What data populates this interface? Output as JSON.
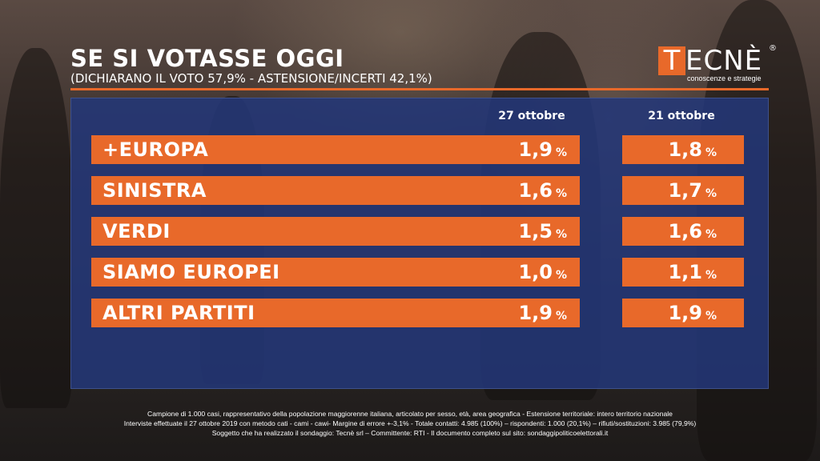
{
  "header": {
    "title": "SE SI VOTASSE OGGI",
    "subtitle": "(DICHIARANO IL VOTO 57,9% - ASTENSIONE/INCERTI 42,1%)"
  },
  "logo": {
    "initial": "T",
    "rest": "ECNÈ",
    "registered": "®",
    "tagline": "conoscenze e strategie"
  },
  "colors": {
    "accent": "#e8692a",
    "panel": "#233778"
  },
  "chart_data": {
    "type": "table",
    "columns": [
      "27 ottobre",
      "21 ottobre"
    ],
    "unit": "%",
    "rows": [
      {
        "party": "+EUROPA",
        "values": [
          "1,9",
          "1,8"
        ]
      },
      {
        "party": "SINISTRA",
        "values": [
          "1,6",
          "1,7"
        ]
      },
      {
        "party": "VERDI",
        "values": [
          "1,5",
          "1,6"
        ]
      },
      {
        "party": "SIAMO EUROPEI",
        "values": [
          "1,0",
          "1,1"
        ]
      },
      {
        "party": "ALTRI PARTITI",
        "values": [
          "1,9",
          "1,9"
        ]
      }
    ]
  },
  "footer": {
    "line1": "Campione di 1.000 casi, rappresentativo della popolazione maggiorenne italiana, articolato per sesso, età, area geografica - Estensione territoriale: intero territorio nazionale",
    "line2": "Interviste effettuate il 27 ottobre 2019 con metodo cati - cami - cawi- Margine di errore +-3,1% - Totale contatti: 4.985 (100%) – rispondenti: 1.000 (20,1%) – rifiuti/sostituzioni: 3.985 (79,9%)",
    "line3": "Soggetto che ha realizzato il sondaggio: Tecnè srl – Committente: RTI - Il documento completo sul sito: sondaggipoliticoelettorali.it"
  }
}
